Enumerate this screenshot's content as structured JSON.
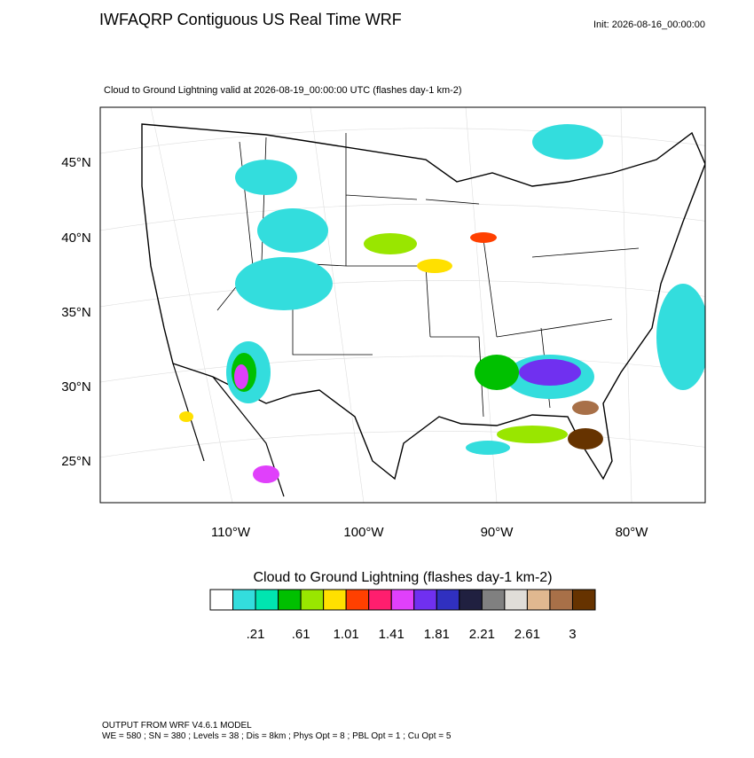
{
  "header": {
    "title": "IWFAQRP Contiguous US Real Time WRF",
    "init": "Init: 2026-08-16_00:00:00"
  },
  "map": {
    "subtitle": "Cloud to Ground Lightning valid at 2026-08-19_00:00:00 UTC   (flashes day-1 km-2)",
    "lat_labels": [
      "45°N",
      "40°N",
      "35°N",
      "30°N",
      "25°N"
    ],
    "lon_labels": [
      "110°W",
      "100°W",
      "90°W",
      "80°W"
    ]
  },
  "colorbar": {
    "title": "Cloud to Ground Lightning  (flashes day-1 km-2)",
    "colors": [
      "#ffffff",
      "#33dddd",
      "#00e5b0",
      "#00c000",
      "#99e600",
      "#ffe000",
      "#ff4000",
      "#ff1e6e",
      "#e040fb",
      "#7030f0",
      "#3030c0",
      "#202040",
      "#808080",
      "#e0ddd8",
      "#e0b890",
      "#a87048",
      "#663300"
    ],
    "labels": [
      ".21",
      ".61",
      "1.01",
      "1.41",
      "1.81",
      "2.21",
      "2.61",
      "3"
    ]
  },
  "footer": {
    "line1": "OUTPUT FROM WRF V4.6.1 MODEL",
    "line2": "WE = 580 ; SN = 380 ; Levels = 38 ; Dis = 8km ; Phys Opt = 8 ; PBL Opt = 1 ; Cu Opt = 5"
  }
}
